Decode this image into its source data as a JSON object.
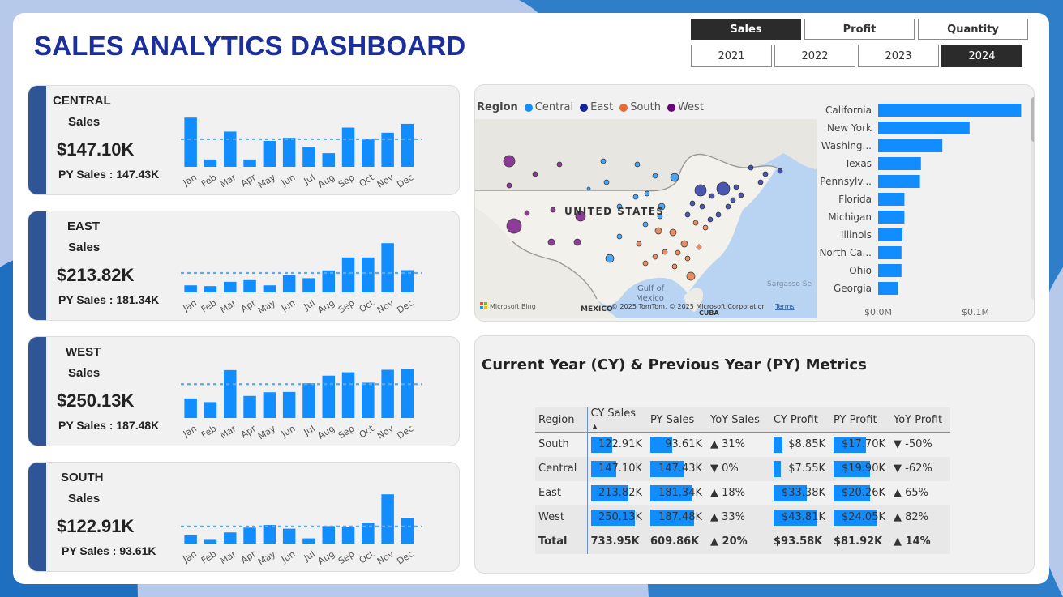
{
  "header": {
    "title": "SALES ANALYTICS DASHBOARD"
  },
  "metric_selector": {
    "options": [
      "Sales",
      "Profit",
      "Quantity"
    ],
    "selected": "Sales"
  },
  "year_selector": {
    "options": [
      "2021",
      "2022",
      "2023",
      "2024"
    ],
    "selected": "2024"
  },
  "colors": {
    "accent_bar": "#2f5597",
    "bar_blue": "#118dff",
    "title_blue": "#1b2f9c",
    "central": "#118dff",
    "east": "#12239e",
    "south": "#e66c37",
    "west": "#6b007b"
  },
  "region_cards": [
    {
      "region": "CENTRAL",
      "sales_label": "Sales",
      "value": "$147.10K",
      "py_label": "PY Sales : 147.43K",
      "months": [
        "Jan",
        "Feb",
        "Mar",
        "Apr",
        "May",
        "Jun",
        "Jul",
        "Aug",
        "Sep",
        "Oct",
        "Nov",
        "Dec"
      ],
      "monthly_sales": [
        17.3,
        2.6,
        12.4,
        2.6,
        9.1,
        10.2,
        7.1,
        4.8,
        13.8,
        9.9,
        12.0,
        15.1
      ],
      "avg": 9.7
    },
    {
      "region": "EAST",
      "sales_label": "Sales",
      "value": "$213.82K",
      "py_label": "PY Sales : 181.34K",
      "months": [
        "Jan",
        "Feb",
        "Mar",
        "Apr",
        "May",
        "Jun",
        "Jul",
        "Aug",
        "Sep",
        "Oct",
        "Nov",
        "Dec"
      ],
      "monthly_sales": [
        5.5,
        4.9,
        8.2,
        9.5,
        5.5,
        13.2,
        11.0,
        17.0,
        27.0,
        27.0,
        38.0,
        17.2
      ],
      "avg": 15.0
    },
    {
      "region": "WEST",
      "sales_label": "Sales",
      "value": "$250.13K",
      "py_label": "PY Sales : 187.48K",
      "months": [
        "Jan",
        "Feb",
        "Mar",
        "Apr",
        "May",
        "Jun",
        "Jul",
        "Aug",
        "Sep",
        "Oct",
        "Nov",
        "Dec"
      ],
      "monthly_sales": [
        13.3,
        10.8,
        32.6,
        15.0,
        17.5,
        17.7,
        23.6,
        28.8,
        31.1,
        24.0,
        32.8,
        33.5
      ],
      "avg": 23.0
    },
    {
      "region": "SOUTH",
      "sales_label": "Sales",
      "value": "$122.91K",
      "py_label": "PY Sales : 93.61K",
      "months": [
        "Jan",
        "Feb",
        "Mar",
        "Apr",
        "May",
        "Jun",
        "Jul",
        "Aug",
        "Sep",
        "Oct",
        "Nov",
        "Dec"
      ],
      "monthly_sales": [
        4.4,
        2.0,
        6.0,
        8.6,
        10.0,
        8.0,
        2.8,
        9.4,
        9.0,
        10.9,
        26.5,
        13.8
      ],
      "avg": 9.2
    }
  ],
  "map": {
    "legend_title": "Region",
    "legend": [
      {
        "name": "Central",
        "color": "#118dff"
      },
      {
        "name": "East",
        "color": "#12239e"
      },
      {
        "name": "South",
        "color": "#e66c37"
      },
      {
        "name": "West",
        "color": "#6b007b"
      }
    ],
    "labels": {
      "country": "UNITED STATES",
      "gulf1": "Gulf of",
      "gulf2": "Mexico",
      "mexico": "MEXICO",
      "cuba": "CUBA",
      "sargasso": "Sargasso Se"
    },
    "attribution": "© 2025 TomTom, © 2025 Microsoft Corporation",
    "terms": "Terms",
    "logo": "Microsoft Bing"
  },
  "chart_data": {
    "type": "bar",
    "orientation": "horizontal",
    "categories": [
      "California",
      "New York",
      "Washing...",
      "Texas",
      "Pennsylv...",
      "Florida",
      "Michigan",
      "Illinois",
      "North Ca...",
      "Ohio",
      "Georgia"
    ],
    "values": [
      0.147,
      0.094,
      0.066,
      0.044,
      0.043,
      0.027,
      0.027,
      0.025,
      0.024,
      0.024,
      0.02
    ],
    "unit": "M",
    "xlim": [
      0,
      0.15
    ],
    "xticks": [
      "$0.0M",
      "$0.1M"
    ],
    "color": "#118dff"
  },
  "metrics": {
    "title": "Current Year (CY) & Previous Year (PY) Metrics",
    "columns": [
      "Region",
      "CY Sales",
      "PY Sales",
      "YoY Sales",
      "CY Profit",
      "PY Profit",
      "YoY Profit"
    ],
    "rows": [
      {
        "region": "South",
        "cy_sales": "122.91K",
        "py_sales": "93.61K",
        "yoy_sales": "▲ 31%",
        "cy_profit": "$8.85K",
        "py_profit": "$17.70K",
        "yoy_profit": "▼ -50%"
      },
      {
        "region": "Central",
        "cy_sales": "147.10K",
        "py_sales": "147.43K",
        "yoy_sales": "▼ 0%",
        "cy_profit": "$7.55K",
        "py_profit": "$19.90K",
        "yoy_profit": "▼ -62%"
      },
      {
        "region": "East",
        "cy_sales": "213.82K",
        "py_sales": "181.34K",
        "yoy_sales": "▲ 18%",
        "cy_profit": "$33.38K",
        "py_profit": "$20.26K",
        "yoy_profit": "▲ 65%"
      },
      {
        "region": "West",
        "cy_sales": "250.13K",
        "py_sales": "187.48K",
        "yoy_sales": "▲ 33%",
        "cy_profit": "$43.81K",
        "py_profit": "$24.05K",
        "yoy_profit": "▲ 82%"
      }
    ],
    "bar_values": {
      "cy_sales": [
        122.91,
        147.1,
        213.82,
        250.13
      ],
      "py_sales": [
        93.61,
        147.43,
        181.34,
        187.48
      ],
      "cy_profit": [
        8.85,
        7.55,
        33.38,
        43.81
      ],
      "py_profit": [
        17.7,
        19.9,
        20.26,
        24.05
      ]
    },
    "total": {
      "region": "Total",
      "cy_sales": "733.95K",
      "py_sales": "609.86K",
      "yoy_sales": "▲ 20%",
      "cy_profit": "$93.58K",
      "py_profit": "$81.92K",
      "yoy_profit": "▲ 14%"
    }
  }
}
